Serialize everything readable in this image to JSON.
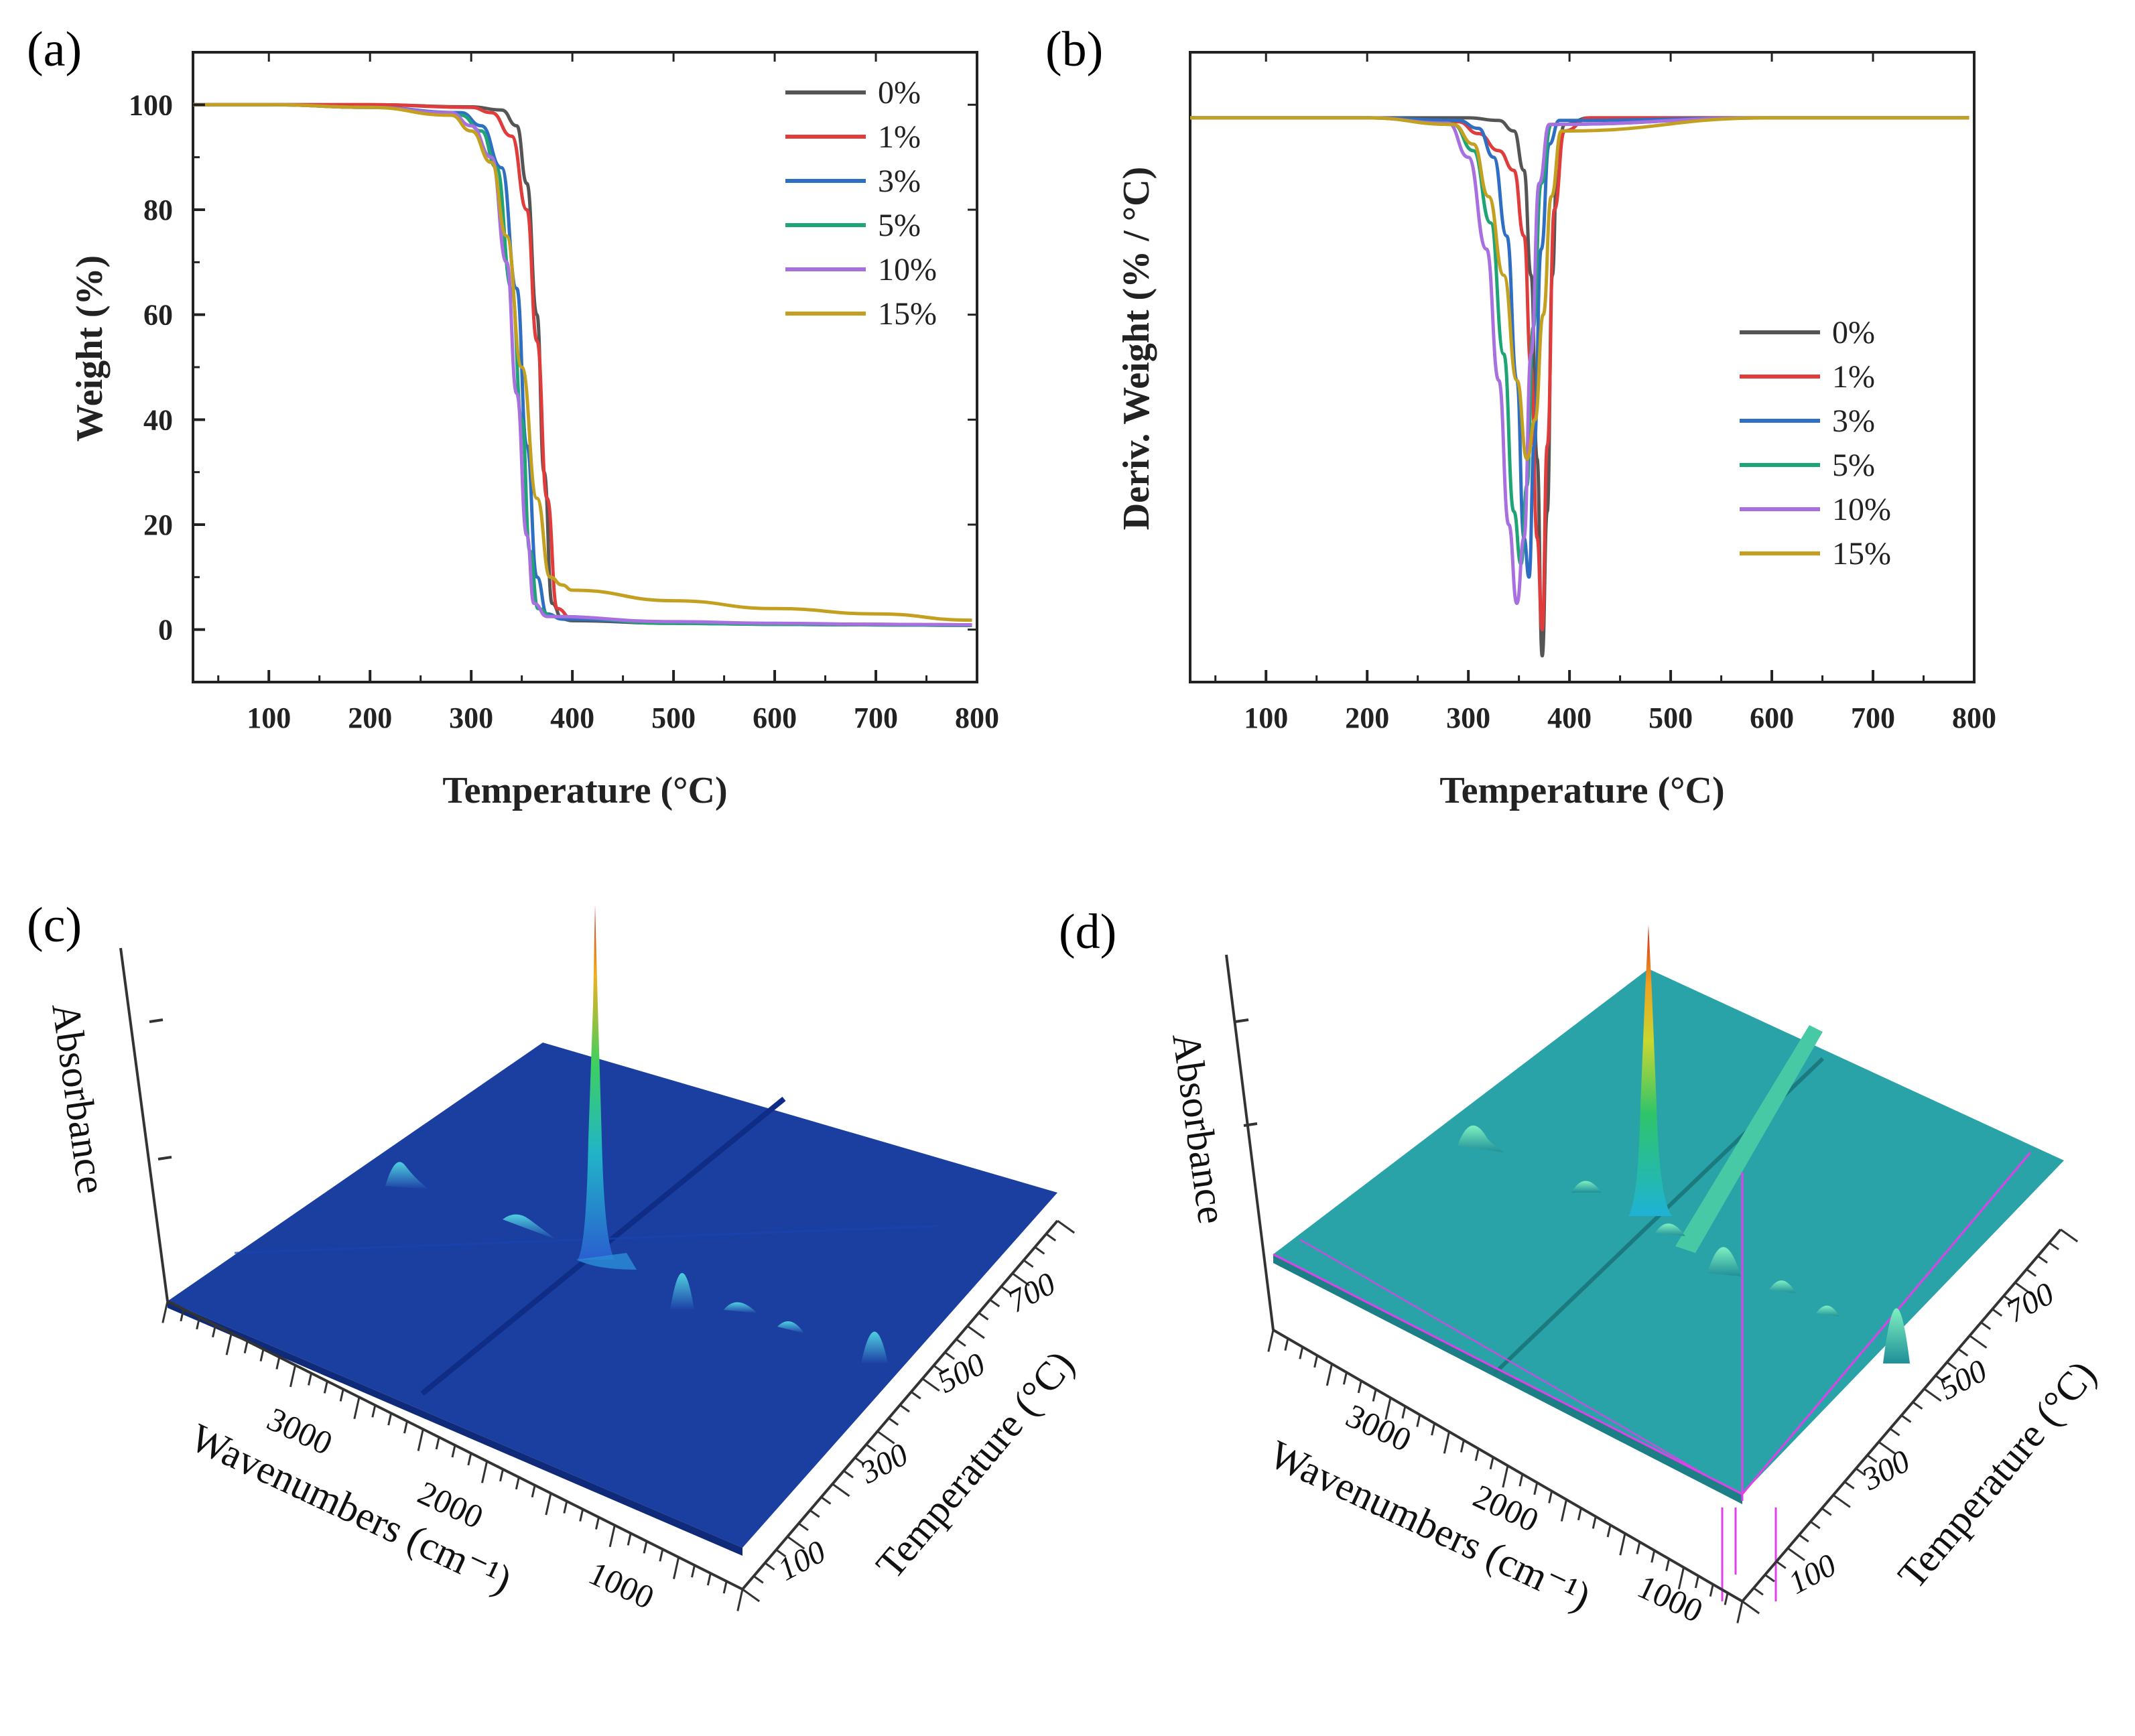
{
  "panels": {
    "a": "(a)",
    "b": "(b)",
    "c": "(c)",
    "d": "(d)"
  },
  "chart_data": [
    {
      "id": "a",
      "type": "line",
      "title": "",
      "xlabel": "Temperature (°C)",
      "ylabel": "Weight (%)",
      "xlim": [
        25,
        800
      ],
      "ylim": [
        -10,
        110
      ],
      "xticks": [
        100,
        200,
        300,
        400,
        500,
        600,
        700,
        800
      ],
      "yticks": [
        0,
        20,
        40,
        60,
        80,
        100
      ],
      "legend_position": "top-right",
      "series": [
        {
          "name": "0%",
          "color": "#555555",
          "x": [
            25,
            100,
            200,
            300,
            330,
            345,
            355,
            365,
            372,
            380,
            390,
            400,
            500,
            600,
            700,
            795
          ],
          "y": [
            100,
            100,
            100,
            99.6,
            99,
            96,
            85,
            60,
            30,
            5,
            2,
            1.7,
            1.2,
            1,
            0.9,
            0.8
          ]
        },
        {
          "name": "1%",
          "color": "#e03c3c",
          "x": [
            25,
            100,
            200,
            300,
            320,
            340,
            355,
            365,
            375,
            385,
            400,
            500,
            600,
            700,
            795
          ],
          "y": [
            100,
            100,
            100,
            99.5,
            98.5,
            94,
            80,
            55,
            25,
            4,
            2,
            1.3,
            1.1,
            1,
            0.9
          ]
        },
        {
          "name": "3%",
          "color": "#2e6fc4",
          "x": [
            25,
            100,
            200,
            290,
            310,
            330,
            345,
            355,
            365,
            375,
            390,
            500,
            600,
            700,
            795
          ],
          "y": [
            100,
            100,
            99.5,
            98.5,
            96,
            88,
            65,
            35,
            10,
            3,
            2,
            1.3,
            1,
            0.9,
            0.8
          ]
        },
        {
          "name": "5%",
          "color": "#1fa476",
          "x": [
            25,
            100,
            200,
            290,
            310,
            325,
            340,
            350,
            358,
            366,
            380,
            500,
            600,
            700,
            795
          ],
          "y": [
            100,
            100,
            99.5,
            98,
            95,
            88,
            65,
            40,
            15,
            4,
            2.5,
            1.2,
            1,
            0.9,
            0.8
          ]
        },
        {
          "name": "10%",
          "color": "#a86fe0",
          "x": [
            25,
            100,
            200,
            280,
            300,
            320,
            335,
            345,
            355,
            362,
            375,
            500,
            600,
            700,
            795
          ],
          "y": [
            100,
            100,
            99.5,
            98.5,
            96,
            90,
            70,
            45,
            18,
            5,
            2.5,
            1.5,
            1.2,
            1,
            0.9
          ]
        },
        {
          "name": "15%",
          "color": "#c4a020",
          "x": [
            25,
            100,
            200,
            280,
            300,
            320,
            335,
            350,
            365,
            378,
            390,
            400,
            500,
            600,
            700,
            795
          ],
          "y": [
            100,
            100,
            99.5,
            98,
            95,
            89,
            75,
            50,
            25,
            10,
            8.5,
            7.5,
            5.5,
            4,
            3,
            1.8
          ]
        }
      ]
    },
    {
      "id": "b",
      "type": "line",
      "title": "",
      "xlabel": "Temperature (°C)",
      "ylabel": "Deriv. Weight (% / °C)",
      "xlim": [
        25,
        800
      ],
      "ylim": [
        -4.3,
        0.5
      ],
      "xticks": [
        100,
        200,
        300,
        400,
        500,
        600,
        700,
        800
      ],
      "legend_position": "center-right",
      "series": [
        {
          "name": "0%",
          "color": "#555555",
          "x": [
            25,
            200,
            300,
            330,
            345,
            355,
            362,
            368,
            373,
            378,
            383,
            388,
            395,
            420,
            600,
            795
          ],
          "y": [
            0,
            0,
            0,
            -0.02,
            -0.1,
            -0.4,
            -1.2,
            -2.6,
            -4.1,
            -3.0,
            -1.2,
            -0.3,
            -0.05,
            0,
            0,
            0
          ]
        },
        {
          "name": "1%",
          "color": "#e03c3c",
          "x": [
            25,
            200,
            290,
            310,
            330,
            345,
            355,
            362,
            368,
            373,
            378,
            385,
            395,
            420,
            600,
            795
          ],
          "y": [
            0,
            0,
            -0.03,
            -0.12,
            -0.25,
            -0.4,
            -0.9,
            -1.9,
            -3.2,
            -3.9,
            -2.5,
            -0.7,
            -0.1,
            0,
            0,
            0
          ]
        },
        {
          "name": "3%",
          "color": "#2e6fc4",
          "x": [
            25,
            200,
            290,
            310,
            325,
            338,
            348,
            355,
            360,
            365,
            372,
            380,
            390,
            600,
            795
          ],
          "y": [
            0,
            0,
            -0.02,
            -0.08,
            -0.3,
            -0.9,
            -2.0,
            -3.2,
            -3.5,
            -2.5,
            -1.0,
            -0.2,
            -0.02,
            0,
            0
          ]
        },
        {
          "name": "5%",
          "color": "#1fa476",
          "x": [
            25,
            200,
            285,
            305,
            322,
            335,
            345,
            352,
            358,
            364,
            372,
            382,
            600,
            795
          ],
          "y": [
            0,
            0,
            -0.05,
            -0.25,
            -0.8,
            -1.8,
            -3.0,
            -3.4,
            -2.8,
            -1.6,
            -0.5,
            -0.05,
            0,
            0
          ]
        },
        {
          "name": "10%",
          "color": "#a86fe0",
          "x": [
            25,
            200,
            280,
            300,
            318,
            330,
            340,
            348,
            355,
            362,
            370,
            380,
            600,
            795
          ],
          "y": [
            0,
            0,
            -0.04,
            -0.3,
            -1.0,
            -2.0,
            -3.1,
            -3.7,
            -3.2,
            -1.8,
            -0.5,
            -0.05,
            0,
            0
          ]
        },
        {
          "name": "15%",
          "color": "#c4a020",
          "x": [
            25,
            200,
            285,
            305,
            320,
            335,
            348,
            358,
            366,
            374,
            382,
            392,
            600,
            795
          ],
          "y": [
            0,
            0,
            -0.05,
            -0.2,
            -0.6,
            -1.2,
            -2.0,
            -2.6,
            -2.3,
            -1.5,
            -0.6,
            -0.1,
            0,
            0
          ]
        }
      ]
    },
    {
      "id": "c",
      "type": "surface3d",
      "xlabel": "Wavenumbers (cm⁻¹)",
      "ylabel": "Temperature (°C)",
      "zlabel": "Absorbance",
      "xticks": [
        3000,
        2000,
        1000
      ],
      "yticks": [
        100,
        300,
        500,
        700
      ],
      "surface_color": "#1b3fa0"
    },
    {
      "id": "d",
      "type": "surface3d",
      "xlabel": "Wavenumbers (cm⁻¹)",
      "ylabel": "Temperature (°C)",
      "zlabel": "Absorbance",
      "xticks": [
        3000,
        2000,
        1000
      ],
      "yticks": [
        100,
        300,
        500,
        700
      ],
      "surface_color": "#2aa3a8"
    }
  ]
}
